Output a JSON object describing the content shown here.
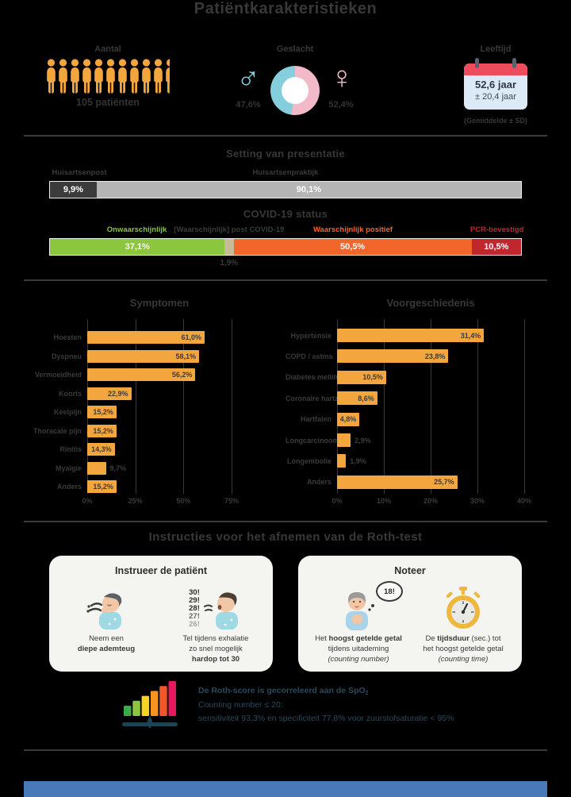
{
  "page": {
    "title": "Patiëntkarakteristieken"
  },
  "stats": {
    "aantal": {
      "label": "Aantal",
      "value": "105 patiënten",
      "icon_full_count": 10,
      "icon_half": true,
      "icon_color": "#f2a63d"
    },
    "geslacht": {
      "label": "Geslacht",
      "male_symbol": "♂",
      "female_symbol": "♀",
      "male_pct": "47,6%",
      "female_pct": "52,4%",
      "male_value": 47.6,
      "female_value": 52.4,
      "male_color": "#84cedd",
      "female_color": "#f2b9c9"
    },
    "leeftijd": {
      "label": "Leeftijd",
      "mean": "52,6 jaar",
      "sd": "± 20,4 jaar",
      "note": "(Gemiddelde ± SD)"
    }
  },
  "setting": {
    "title": "Setting van presentatie",
    "segments": [
      {
        "label": "Huisartsenpost",
        "pct": "9,9%",
        "value": 9.9,
        "color": "#3b3b3b"
      },
      {
        "label": "Huisartsenpraktijk",
        "pct": "90,1%",
        "value": 90.1,
        "color": "#b5b5b5"
      }
    ]
  },
  "covid": {
    "title": "COVID-19 status",
    "segments": [
      {
        "label": "Onwaarschijnlijk",
        "pct": "37,1%",
        "value": 37.1,
        "color": "#8cc63f",
        "label_color": "#8cc63f",
        "pct_inside": true
      },
      {
        "label": "[Waarschijnlijk] post COVID-19",
        "pct": "1,9%",
        "value": 1.9,
        "color": "#c9bb9a",
        "label_color": "#3b3b3b",
        "pct_inside": false
      },
      {
        "label": "Waarschijnlijk positief",
        "pct": "50,5%",
        "value": 50.5,
        "color": "#f2652b",
        "label_color": "#f2652b",
        "pct_inside": true
      },
      {
        "label": "PCR-bevestigd",
        "pct": "10,5%",
        "value": 10.5,
        "color": "#c0272d",
        "label_color": "#c0272d",
        "pct_inside": true
      }
    ]
  },
  "chart_data": [
    {
      "type": "bar",
      "orientation": "horizontal",
      "title": "Symptomen",
      "categories": [
        "Hoesten",
        "Dyspneu",
        "Vermoeidheid",
        "Koorts",
        "Keelpijn",
        "Thoracale pijn",
        "Rinitis",
        "Myalgie",
        "Anders"
      ],
      "values": [
        61.0,
        58.1,
        56.2,
        22.9,
        15.2,
        15.2,
        14.3,
        9.7,
        15.2
      ],
      "labels": [
        "61,0%",
        "58,1%",
        "56,2%",
        "22,9%",
        "15,2%",
        "15,2%",
        "14,3%",
        "9,7%",
        "15,2%"
      ],
      "xlim": [
        0,
        75
      ],
      "tick_values": [
        0,
        25,
        50,
        75
      ],
      "ticks": [
        "0%",
        "25%",
        "50%",
        "75%"
      ],
      "grid": true,
      "bar_color": "#f2a63d"
    },
    {
      "type": "bar",
      "orientation": "horizontal",
      "title": "Voorgeschiedenis",
      "categories": [
        "Hypertensie",
        "COPD / astma",
        "Diabetes mellitus",
        "Coronaire hartziekte",
        "Hartfalen",
        "Longcarcinoom",
        "Longembolie",
        "Anders"
      ],
      "values": [
        31.4,
        23.8,
        10.5,
        8.6,
        4.8,
        2.9,
        1.9,
        25.7
      ],
      "labels": [
        "31,4%",
        "23,8%",
        "10,5%",
        "8,6%",
        "4,8%",
        "2,9%",
        "1,9%",
        "25,7%"
      ],
      "xlim": [
        0,
        40
      ],
      "tick_values": [
        0,
        10,
        20,
        30,
        40
      ],
      "ticks": [
        "0%",
        "10%",
        "20%",
        "30%",
        "40%"
      ],
      "grid": true,
      "bar_color": "#f2a63d"
    }
  ],
  "instructions": {
    "title": "Instructies voor het afnemen van de Roth-test",
    "cards": [
      {
        "title": "Instrueer de patiënt",
        "items": [
          {
            "icon": "deep-breath-icon",
            "caption": [
              [
                {
                  "t": "Neem een",
                  "b": 0
                }
              ],
              [
                {
                  "t": "diepe ademteug",
                  "b": 1
                }
              ]
            ]
          },
          {
            "icon": "count-aloud-icon",
            "numbers": [
              "30!",
              "29!",
              "28!",
              "27!",
              "26!"
            ],
            "caption": [
              [
                {
                  "t": "Tel tijdens exhalatie",
                  "b": 0
                }
              ],
              [
                {
                  "t": "zo snel mogelijk",
                  "b": 0
                }
              ],
              [
                {
                  "t": "hardop tot 30",
                  "b": 1
                }
              ]
            ]
          }
        ]
      },
      {
        "title": "Noteer",
        "items": [
          {
            "icon": "counting-number-icon",
            "bubble": "18!",
            "caption": [
              [
                {
                  "t": "Het ",
                  "b": 0
                },
                {
                  "t": "hoogst getelde getal",
                  "b": 1
                }
              ],
              [
                {
                  "t": "tijdens uitademing",
                  "b": 0
                }
              ],
              [
                {
                  "t": "(counting number)",
                  "b": 0,
                  "i": 1
                }
              ]
            ]
          },
          {
            "icon": "stopwatch-icon",
            "caption": [
              [
                {
                  "t": "De ",
                  "b": 0
                },
                {
                  "t": "tijdsduur",
                  "b": 1
                },
                {
                  "t": " (sec.) tot",
                  "b": 0
                }
              ],
              [
                {
                  "t": "het hoogst getelde getal",
                  "b": 0
                }
              ],
              [
                {
                  "t": "(counting time)",
                  "b": 0,
                  "i": 1
                }
              ]
            ]
          }
        ]
      }
    ]
  },
  "rothscore": {
    "line1": "De Roth-score is gecorreleerd aan de SpO",
    "line1_sub": "2",
    "line2": "Counting number ≤ 20:",
    "line3": "sensitiviteit 93,3% en specificiteit 77,8% voor zuurstofsaturatie < 95%",
    "gauge_colors": [
      "#3aaa4a",
      "#8cc63f",
      "#f5d327",
      "#f7941d",
      "#f0582b",
      "#e6185e"
    ],
    "pulse_color": "#1d4456"
  }
}
